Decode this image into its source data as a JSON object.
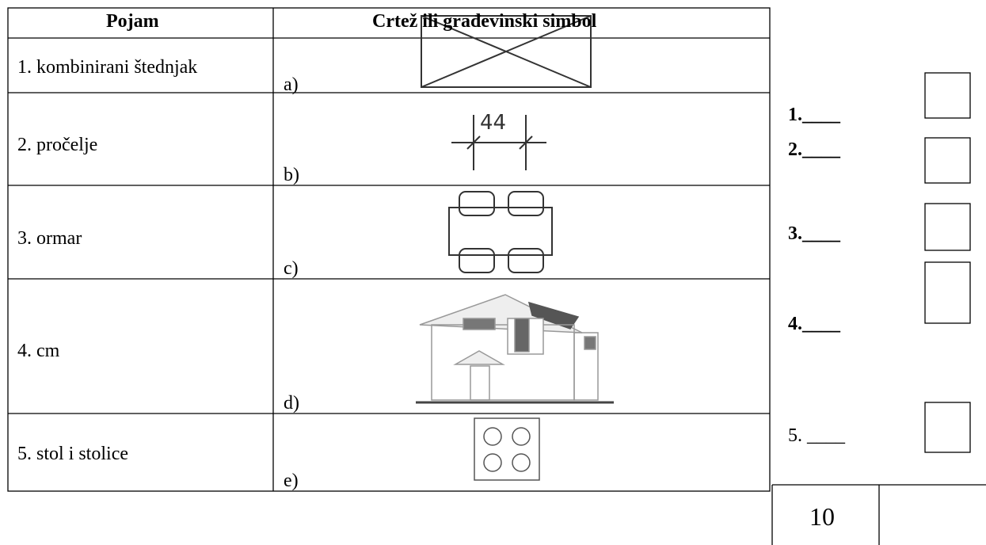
{
  "table": {
    "header": [
      "Pojam",
      "Crtež ili građevinski simbol"
    ],
    "rows": [
      [
        "1. kombinirani štednjak",
        "a)"
      ],
      [
        "2. pročelje",
        "b)"
      ],
      [
        "3. ormar",
        "c)"
      ],
      [
        "4. cm",
        "d)"
      ],
      [
        "5. stol i stolice",
        "e)"
      ]
    ],
    "dimension_label": "44"
  },
  "answers": [
    "1.____",
    "2.____",
    "3.____",
    "4.____",
    "5. ____"
  ],
  "score": {
    "max": "10"
  }
}
